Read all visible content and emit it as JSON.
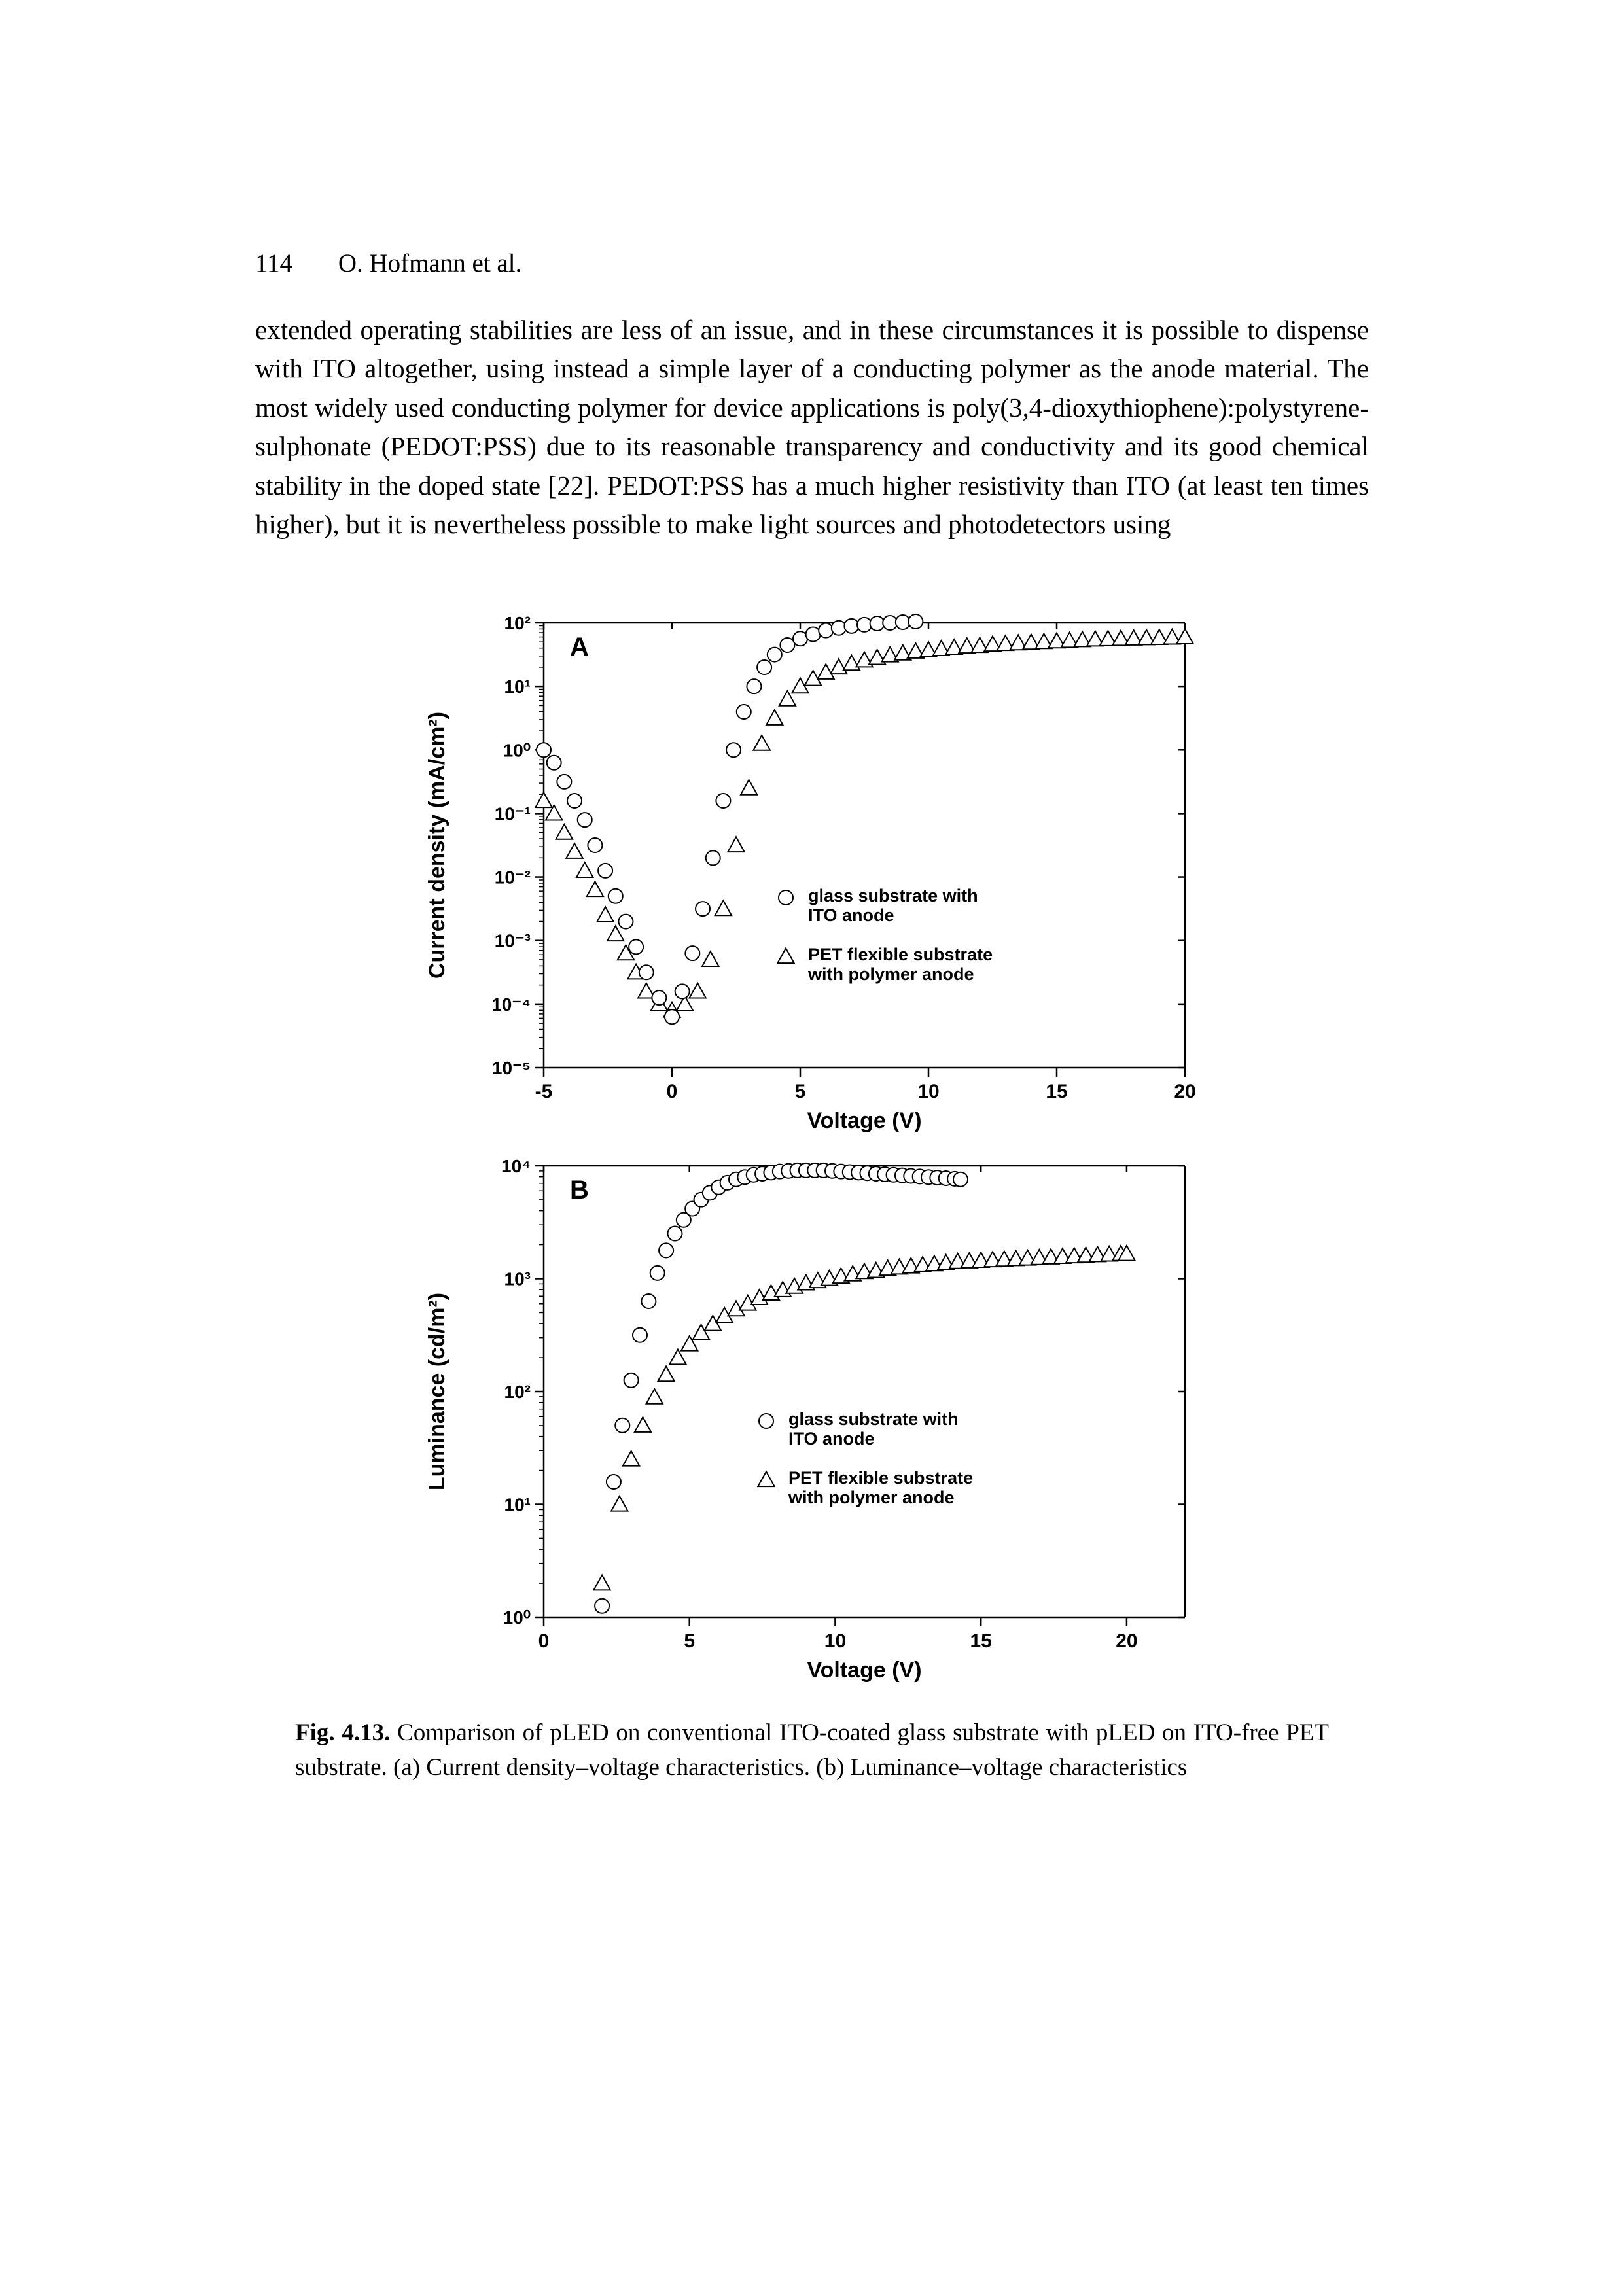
{
  "header": {
    "page_number": "114",
    "running_head": "O. Hofmann et al."
  },
  "body_paragraph": "extended operating stabilities are less of an issue, and in these circumstances it is possible to dispense with ITO altogether, using instead a simple layer of a conducting polymer as the anode material. The most widely used conducting polymer for device applications is poly(3,4-dioxythiophene):polystyrene-sulphonate (PEDOT:PSS) due to its reasonable transparency and conductivity and its good chemical stability in the doped state [22]. PEDOT:PSS has a much higher resistivity than ITO (at least ten times higher), but it is nevertheless possible to make light sources and photodetectors using",
  "caption": {
    "label": "Fig. 4.13.",
    "text": "Comparison of pLED on conventional ITO-coated glass substrate with pLED on ITO-free PET substrate. (a) Current density–voltage characteristics. (b) Luminance–voltage characteristics"
  },
  "chartA": {
    "type": "scatter-log",
    "panel_label": "A",
    "xlabel": "Voltage (V)",
    "ylabel": "Current density (mA/cm²)",
    "xlim": [
      -5,
      20
    ],
    "xticks": [
      -5,
      0,
      5,
      10,
      15,
      20
    ],
    "ylim_exp": [
      -5,
      2
    ],
    "ytick_exps": [
      -5,
      -4,
      -3,
      -2,
      -1,
      0,
      1,
      2
    ],
    "series_circle": {
      "marker": "circle",
      "color": "#000000",
      "fill": "#ffffff",
      "legend_line1": "glass substrate with",
      "legend_line2": "ITO anode",
      "points": [
        [
          -5,
          0
        ],
        [
          -4.6,
          -0.2
        ],
        [
          -4.2,
          -0.5
        ],
        [
          -3.8,
          -0.8
        ],
        [
          -3.4,
          -1.1
        ],
        [
          -3,
          -1.5
        ],
        [
          -2.6,
          -1.9
        ],
        [
          -2.2,
          -2.3
        ],
        [
          -1.8,
          -2.7
        ],
        [
          -1.4,
          -3.1
        ],
        [
          -1,
          -3.5
        ],
        [
          -0.5,
          -3.9
        ],
        [
          0,
          -4.2
        ],
        [
          0.4,
          -3.8
        ],
        [
          0.8,
          -3.2
        ],
        [
          1.2,
          -2.5
        ],
        [
          1.6,
          -1.7
        ],
        [
          2.0,
          -0.8
        ],
        [
          2.4,
          0.0
        ],
        [
          2.8,
          0.6
        ],
        [
          3.2,
          1.0
        ],
        [
          3.6,
          1.3
        ],
        [
          4.0,
          1.5
        ],
        [
          4.5,
          1.65
        ],
        [
          5.0,
          1.75
        ],
        [
          5.5,
          1.82
        ],
        [
          6.0,
          1.88
        ],
        [
          6.5,
          1.92
        ],
        [
          7.0,
          1.95
        ],
        [
          7.5,
          1.97
        ],
        [
          8.0,
          1.99
        ],
        [
          8.5,
          2.0
        ],
        [
          9.0,
          2.01
        ],
        [
          9.5,
          2.02
        ],
        [
          10.0,
          2.03
        ],
        [
          10.5,
          2.04
        ],
        [
          11.0,
          2.05
        ],
        [
          11.5,
          2.06
        ],
        [
          12.0,
          2.07
        ],
        [
          12.5,
          2.08
        ],
        [
          13.0,
          2.09
        ],
        [
          13.5,
          2.1
        ],
        [
          14.0,
          2.11
        ],
        [
          14.3,
          2.12
        ]
      ]
    },
    "series_triangle": {
      "marker": "triangle",
      "color": "#000000",
      "fill": "#ffffff",
      "legend_line1": "PET flexible substrate",
      "legend_line2": "with polymer anode",
      "points": [
        [
          -5,
          -0.8
        ],
        [
          -4.6,
          -1.0
        ],
        [
          -4.2,
          -1.3
        ],
        [
          -3.8,
          -1.6
        ],
        [
          -3.4,
          -1.9
        ],
        [
          -3,
          -2.2
        ],
        [
          -2.6,
          -2.6
        ],
        [
          -2.2,
          -2.9
        ],
        [
          -1.8,
          -3.2
        ],
        [
          -1.4,
          -3.5
        ],
        [
          -1,
          -3.8
        ],
        [
          -0.5,
          -4.0
        ],
        [
          0,
          -4.1
        ],
        [
          0.5,
          -4.0
        ],
        [
          1,
          -3.8
        ],
        [
          1.5,
          -3.3
        ],
        [
          2,
          -2.5
        ],
        [
          2.5,
          -1.5
        ],
        [
          3,
          -0.6
        ],
        [
          3.5,
          0.1
        ],
        [
          4,
          0.5
        ],
        [
          4.5,
          0.8
        ],
        [
          5,
          1.0
        ],
        [
          5.5,
          1.12
        ],
        [
          6,
          1.22
        ],
        [
          6.5,
          1.3
        ],
        [
          7,
          1.36
        ],
        [
          7.5,
          1.41
        ],
        [
          8,
          1.45
        ],
        [
          8.5,
          1.49
        ],
        [
          9,
          1.52
        ],
        [
          9.5,
          1.55
        ],
        [
          10,
          1.57
        ],
        [
          10.5,
          1.59
        ],
        [
          11,
          1.61
        ],
        [
          11.5,
          1.63
        ],
        [
          12,
          1.64
        ],
        [
          12.5,
          1.66
        ],
        [
          13,
          1.67
        ],
        [
          13.5,
          1.68
        ],
        [
          14,
          1.69
        ],
        [
          14.5,
          1.7
        ],
        [
          15,
          1.71
        ],
        [
          15.5,
          1.72
        ],
        [
          16,
          1.73
        ],
        [
          16.5,
          1.74
        ],
        [
          17,
          1.745
        ],
        [
          17.5,
          1.75
        ],
        [
          18,
          1.755
        ],
        [
          18.5,
          1.76
        ],
        [
          19,
          1.765
        ],
        [
          19.5,
          1.77
        ],
        [
          20,
          1.775
        ]
      ]
    },
    "axis_color": "#000000",
    "tick_fontsize": 28,
    "label_fontsize": 34,
    "panel_label_fontsize": 40,
    "marker_size": 11,
    "line_width": 2.5
  },
  "chartB": {
    "type": "scatter-log",
    "panel_label": "B",
    "xlabel": "Voltage (V)",
    "ylabel": "Luminance (cd/m²)",
    "xlim": [
      0,
      22
    ],
    "xticks": [
      0,
      5,
      10,
      15,
      20
    ],
    "ylim_exp": [
      0,
      4
    ],
    "ytick_exps": [
      0,
      1,
      2,
      3,
      4
    ],
    "series_circle": {
      "marker": "circle",
      "color": "#000000",
      "fill": "#ffffff",
      "legend_line1": "glass substrate with",
      "legend_line2": "ITO anode",
      "extras": [
        [
          2,
          0.1
        ]
      ],
      "points": [
        [
          2.4,
          1.2
        ],
        [
          2.7,
          1.7
        ],
        [
          3.0,
          2.1
        ],
        [
          3.3,
          2.5
        ],
        [
          3.6,
          2.8
        ],
        [
          3.9,
          3.05
        ],
        [
          4.2,
          3.25
        ],
        [
          4.5,
          3.4
        ],
        [
          4.8,
          3.52
        ],
        [
          5.1,
          3.62
        ],
        [
          5.4,
          3.7
        ],
        [
          5.7,
          3.76
        ],
        [
          6.0,
          3.81
        ],
        [
          6.3,
          3.85
        ],
        [
          6.6,
          3.88
        ],
        [
          6.9,
          3.9
        ],
        [
          7.2,
          3.92
        ],
        [
          7.5,
          3.93
        ],
        [
          7.8,
          3.94
        ],
        [
          8.1,
          3.95
        ],
        [
          8.4,
          3.955
        ],
        [
          8.7,
          3.96
        ],
        [
          9.0,
          3.96
        ],
        [
          9.3,
          3.96
        ],
        [
          9.6,
          3.96
        ],
        [
          9.9,
          3.955
        ],
        [
          10.2,
          3.95
        ],
        [
          10.5,
          3.945
        ],
        [
          10.8,
          3.94
        ],
        [
          11.1,
          3.935
        ],
        [
          11.4,
          3.93
        ],
        [
          11.7,
          3.925
        ],
        [
          12.0,
          3.92
        ],
        [
          12.3,
          3.915
        ],
        [
          12.6,
          3.91
        ],
        [
          12.9,
          3.905
        ],
        [
          13.2,
          3.9
        ],
        [
          13.5,
          3.895
        ],
        [
          13.8,
          3.89
        ],
        [
          14.1,
          3.885
        ],
        [
          14.3,
          3.88
        ]
      ]
    },
    "series_triangle": {
      "marker": "triangle",
      "color": "#000000",
      "fill": "#ffffff",
      "legend_line1": "PET flexible substrate",
      "legend_line2": "with polymer anode",
      "extras": [
        [
          2,
          0.3
        ]
      ],
      "points": [
        [
          2.6,
          1.0
        ],
        [
          3.0,
          1.4
        ],
        [
          3.4,
          1.7
        ],
        [
          3.8,
          1.95
        ],
        [
          4.2,
          2.15
        ],
        [
          4.6,
          2.3
        ],
        [
          5.0,
          2.42
        ],
        [
          5.4,
          2.52
        ],
        [
          5.8,
          2.6
        ],
        [
          6.2,
          2.67
        ],
        [
          6.6,
          2.73
        ],
        [
          7.0,
          2.78
        ],
        [
          7.4,
          2.83
        ],
        [
          7.8,
          2.87
        ],
        [
          8.2,
          2.9
        ],
        [
          8.6,
          2.93
        ],
        [
          9.0,
          2.96
        ],
        [
          9.4,
          2.98
        ],
        [
          9.8,
          3.0
        ],
        [
          10.2,
          3.02
        ],
        [
          10.6,
          3.04
        ],
        [
          11.0,
          3.06
        ],
        [
          11.4,
          3.07
        ],
        [
          11.8,
          3.09
        ],
        [
          12.2,
          3.1
        ],
        [
          12.6,
          3.11
        ],
        [
          13.0,
          3.12
        ],
        [
          13.4,
          3.13
        ],
        [
          13.8,
          3.14
        ],
        [
          14.2,
          3.15
        ],
        [
          14.6,
          3.155
        ],
        [
          15.0,
          3.16
        ],
        [
          15.4,
          3.165
        ],
        [
          15.8,
          3.17
        ],
        [
          16.2,
          3.175
        ],
        [
          16.6,
          3.18
        ],
        [
          17.0,
          3.185
        ],
        [
          17.4,
          3.19
        ],
        [
          17.8,
          3.195
        ],
        [
          18.2,
          3.2
        ],
        [
          18.6,
          3.205
        ],
        [
          19.0,
          3.21
        ],
        [
          19.4,
          3.215
        ],
        [
          19.8,
          3.22
        ],
        [
          20.0,
          3.22
        ]
      ]
    },
    "axis_color": "#000000",
    "tick_fontsize": 28,
    "label_fontsize": 34,
    "panel_label_fontsize": 40,
    "marker_size": 11,
    "line_width": 2.5
  }
}
